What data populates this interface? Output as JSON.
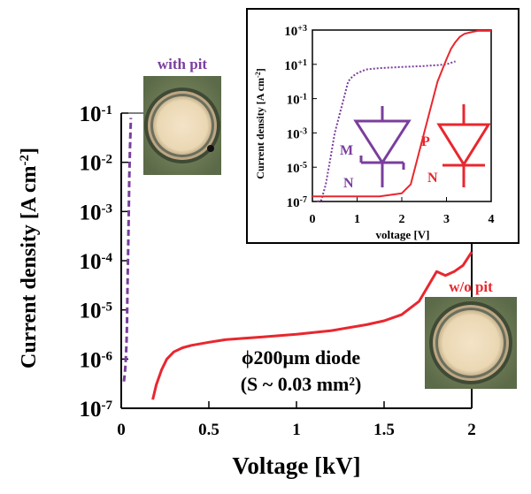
{
  "chart_data": [
    {
      "type": "line",
      "xlabel": "Voltage [kV]",
      "ylabel": "Current density [A cm-2]",
      "xlim": [
        0,
        2
      ],
      "ylim": [
        1e-07,
        0.1
      ],
      "yscale": "log",
      "x_ticks": [
        "0",
        "0.5",
        "1",
        "1.5",
        "2"
      ],
      "y_ticks": [
        {
          "base": "10",
          "exp": "-1"
        },
        {
          "base": "10",
          "exp": "-2"
        },
        {
          "base": "10",
          "exp": "-3"
        },
        {
          "base": "10",
          "exp": "-4"
        },
        {
          "base": "10",
          "exp": "-5"
        },
        {
          "base": "10",
          "exp": "-6"
        },
        {
          "base": "10",
          "exp": "-7"
        }
      ],
      "grid": false,
      "annotations": {
        "with_pit": "with pit",
        "without_pit": "w/o pit",
        "diode_line1": "ϕ200μm diode",
        "diode_line2": "(S ~ 0.03 mm²)"
      },
      "series": [
        {
          "name": "with pit",
          "color": "#7a3e9d",
          "style": "dashed",
          "x": [
            0.015,
            0.02,
            0.025,
            0.03,
            0.033,
            0.036,
            0.04,
            0.043,
            0.046,
            0.05,
            0.055
          ],
          "y": [
            3.5e-07,
            5e-07,
            8e-07,
            2e-06,
            5e-06,
            3e-05,
            0.0002,
            0.001,
            0.005,
            0.02,
            0.08
          ]
        },
        {
          "name": "w/o pit",
          "color": "#e8272f",
          "style": "solid",
          "x": [
            0.18,
            0.2,
            0.23,
            0.26,
            0.3,
            0.35,
            0.4,
            0.5,
            0.6,
            0.8,
            1.0,
            1.2,
            1.4,
            1.5,
            1.6,
            1.7,
            1.75,
            1.8,
            1.85,
            1.9,
            1.95,
            2.0
          ],
          "y": [
            1.5e-07,
            3e-07,
            6e-07,
            1e-06,
            1.4e-06,
            1.7e-06,
            1.9e-06,
            2.2e-06,
            2.5e-06,
            2.8e-06,
            3.2e-06,
            3.8e-06,
            5e-06,
            6e-06,
            8e-06,
            1.5e-05,
            3e-05,
            6e-05,
            5e-05,
            6e-05,
            8e-05,
            0.00015
          ]
        }
      ]
    },
    {
      "type": "line",
      "xlabel": "voltage [V]",
      "ylabel": "Current density [A cm-2]",
      "xlim": [
        0,
        4
      ],
      "ylim": [
        1e-07,
        1000.0
      ],
      "yscale": "log",
      "x_ticks": [
        "0",
        "1",
        "2",
        "3",
        "4"
      ],
      "y_ticks": [
        {
          "base": "10",
          "exp": "+3"
        },
        {
          "base": "10",
          "exp": "+1"
        },
        {
          "base": "10",
          "exp": "-1"
        },
        {
          "base": "10",
          "exp": "-3"
        },
        {
          "base": "10",
          "exp": "-5"
        },
        {
          "base": "10",
          "exp": "-7"
        }
      ],
      "grid": false,
      "symbols": {
        "schottky": {
          "top": "M",
          "bottom": "N",
          "color": "#7a3e9d"
        },
        "pn": {
          "top": "P",
          "bottom": "N",
          "color": "#e8272f"
        }
      },
      "series": [
        {
          "name": "with pit",
          "color": "#7a3e9d",
          "style": "dotted",
          "x": [
            0.1,
            0.2,
            0.3,
            0.4,
            0.5,
            0.6,
            0.7,
            0.8,
            0.9,
            1.0,
            1.2,
            1.5,
            2.0,
            2.5,
            2.8,
            3.0,
            3.2
          ],
          "y": [
            1e-07,
            1.2e-07,
            1e-06,
            3e-05,
            0.001,
            0.01,
            0.1,
            1,
            2,
            3,
            5,
            6,
            7,
            8,
            9,
            10,
            15
          ]
        },
        {
          "name": "w/o pit",
          "color": "#e8272f",
          "style": "solid",
          "x": [
            0.0,
            0.5,
            1.0,
            1.5,
            2.0,
            2.2,
            2.4,
            2.6,
            2.8,
            3.0,
            3.1,
            3.2,
            3.3,
            3.4,
            3.5,
            3.6,
            3.7,
            3.9,
            4.0
          ],
          "y": [
            2e-07,
            2e-07,
            2e-07,
            2e-07,
            3e-07,
            1e-06,
            0.0001,
            0.01,
            1,
            20,
            80,
            200,
            400,
            600,
            700,
            800,
            900,
            900,
            900
          ]
        }
      ]
    }
  ]
}
